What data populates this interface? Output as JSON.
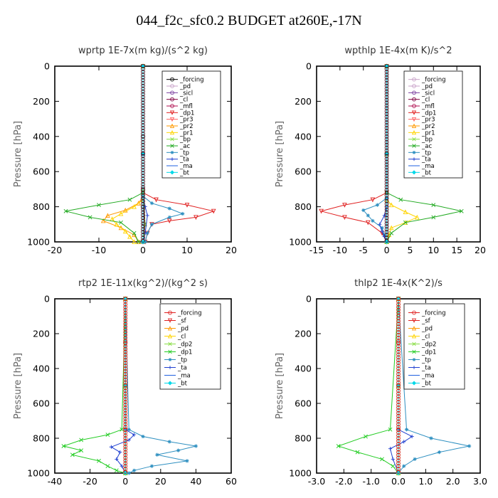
{
  "title": "044_f2c_sfc0.2  BUDGET at260E,-17N",
  "chart_data": [
    {
      "type": "line",
      "title": "wprtp  1E-7x(m kg)/(s^2 kg)",
      "ylabel": "Pressure [hPa]",
      "xlim": [
        -20,
        20
      ],
      "ylim": [
        1000,
        0
      ],
      "x_ticks": [
        -20,
        -10,
        0,
        10,
        20
      ],
      "x_tick_labels": [
        "-20",
        "-10",
        "0",
        "10",
        "20"
      ],
      "y_ticks": [
        0,
        200,
        400,
        600,
        800,
        1000
      ],
      "y_tick_labels": [
        "0",
        "200",
        "400",
        "600",
        "800",
        "1000"
      ],
      "legend_position": "top-right",
      "series": [
        {
          "name": "_forcing",
          "color": "#000000",
          "marker": "o",
          "x": [
            0,
            0,
            0,
            0
          ],
          "y": [
            0,
            400,
            800,
            1000
          ]
        },
        {
          "name": "_pd",
          "color": "#c8a2c8",
          "marker": "o",
          "x": [
            0,
            0,
            0
          ],
          "y": [
            0,
            500,
            1000
          ]
        },
        {
          "name": "_sicl",
          "color": "#7b3fa0",
          "marker": "o",
          "x": [
            0,
            0,
            0
          ],
          "y": [
            0,
            500,
            1000
          ]
        },
        {
          "name": "_cl",
          "color": "#800040",
          "marker": "o",
          "x": [
            0,
            0,
            0.3,
            0
          ],
          "y": [
            0,
            700,
            900,
            1000
          ]
        },
        {
          "name": "_mfl",
          "color": "#b01050",
          "marker": "o",
          "x": [
            0,
            0,
            0
          ],
          "y": [
            0,
            500,
            1000
          ]
        },
        {
          "name": "_dp1",
          "color": "#e02020",
          "marker": "v",
          "x": [
            0,
            0,
            3,
            10,
            16,
            12,
            6,
            2,
            1,
            0.5
          ],
          "y": [
            0,
            720,
            760,
            790,
            825,
            860,
            880,
            900,
            950,
            1000
          ]
        },
        {
          "name": "_pr3",
          "color": "#ff6060",
          "marker": "v",
          "x": [
            0,
            0,
            0
          ],
          "y": [
            0,
            500,
            1000
          ]
        },
        {
          "name": "_pr2",
          "color": "#ff9900",
          "marker": "^",
          "x": [
            0,
            0,
            -1,
            -4,
            -8,
            -9,
            -5,
            -2,
            -1
          ],
          "y": [
            0,
            740,
            780,
            820,
            850,
            880,
            920,
            960,
            1000
          ]
        },
        {
          "name": "_pr1",
          "color": "#ffd400",
          "marker": "^",
          "x": [
            0,
            0,
            -2,
            -5,
            -7,
            -6,
            -4,
            -3,
            -2
          ],
          "y": [
            0,
            760,
            800,
            840,
            870,
            900,
            940,
            970,
            1000
          ]
        },
        {
          "name": "_bp",
          "color": "#88dd44",
          "marker": "x",
          "x": [
            0,
            0,
            0.5,
            0
          ],
          "y": [
            0,
            700,
            900,
            1000
          ]
        },
        {
          "name": "_ac",
          "color": "#22aa22",
          "marker": "x",
          "x": [
            0,
            0,
            -3,
            -10,
            -17.5,
            -12,
            -5,
            -2,
            -1
          ],
          "y": [
            0,
            720,
            760,
            790,
            825,
            860,
            890,
            950,
            1000
          ]
        },
        {
          "name": "_tp",
          "color": "#2d8fc0",
          "marker": "*",
          "x": [
            0,
            0,
            2,
            6,
            9,
            6,
            2,
            1,
            0.5
          ],
          "y": [
            0,
            740,
            780,
            810,
            840,
            860,
            900,
            950,
            1000
          ]
        },
        {
          "name": "_ta",
          "color": "#1f3fd0",
          "marker": "+",
          "x": [
            0,
            0,
            0.5,
            1,
            0.5,
            0
          ],
          "y": [
            0,
            750,
            800,
            850,
            950,
            1000
          ]
        },
        {
          "name": "_ma",
          "color": "#2060e0",
          "marker": "-",
          "x": [
            0,
            0,
            0
          ],
          "y": [
            0,
            500,
            1000
          ]
        },
        {
          "name": "_bt",
          "color": "#00d8e8",
          "marker": "D",
          "x": [
            0,
            0,
            0
          ],
          "y": [
            0,
            500,
            1000
          ]
        }
      ]
    },
    {
      "type": "line",
      "title": "wpthlp  1E-4x(m K)/s^2",
      "ylabel": "Pressure [hPa]",
      "xlim": [
        -15,
        20
      ],
      "ylim": [
        1000,
        0
      ],
      "x_ticks": [
        -15,
        -10,
        -5,
        0,
        5,
        10,
        15,
        20
      ],
      "x_tick_labels": [
        "-15",
        "-10",
        "-5",
        "0",
        "5",
        "10",
        "15",
        "20"
      ],
      "y_ticks": [
        0,
        200,
        400,
        600,
        800,
        1000
      ],
      "y_tick_labels": [
        "0",
        "200",
        "400",
        "600",
        "800",
        "1000"
      ],
      "legend_position": "top-right",
      "series": [
        {
          "name": "_forcing",
          "color": "#c8a2c8",
          "marker": "o",
          "x": [
            0,
            0,
            0
          ],
          "y": [
            0,
            500,
            1000
          ]
        },
        {
          "name": "_pd",
          "color": "#c8a2c8",
          "marker": "o",
          "x": [
            0,
            0,
            0
          ],
          "y": [
            0,
            500,
            1000
          ]
        },
        {
          "name": "_sicl",
          "color": "#7b3fa0",
          "marker": "o",
          "x": [
            0,
            0,
            0
          ],
          "y": [
            0,
            500,
            1000
          ]
        },
        {
          "name": "_cl",
          "color": "#800040",
          "marker": "o",
          "x": [
            0,
            0,
            0
          ],
          "y": [
            0,
            500,
            1000
          ]
        },
        {
          "name": "_mfl",
          "color": "#b01050",
          "marker": "o",
          "x": [
            0,
            0,
            0
          ],
          "y": [
            0,
            500,
            1000
          ]
        },
        {
          "name": "_dp1",
          "color": "#e02020",
          "marker": "v",
          "x": [
            0,
            0,
            -3,
            -9,
            -14,
            -9,
            -4,
            -1,
            0
          ],
          "y": [
            0,
            720,
            760,
            790,
            825,
            860,
            890,
            950,
            1000
          ]
        },
        {
          "name": "_pr3",
          "color": "#ff6060",
          "marker": "v",
          "x": [
            0,
            0,
            0
          ],
          "y": [
            0,
            500,
            1000
          ]
        },
        {
          "name": "_pr2",
          "color": "#ff9900",
          "marker": "^",
          "x": [
            0,
            0,
            0
          ],
          "y": [
            0,
            500,
            1000
          ]
        },
        {
          "name": "_pr1",
          "color": "#ffd400",
          "marker": "^",
          "x": [
            0,
            0,
            1,
            4,
            6.5,
            4,
            1,
            0.5,
            0
          ],
          "y": [
            0,
            760,
            790,
            830,
            860,
            890,
            920,
            960,
            1000
          ]
        },
        {
          "name": "_bp",
          "color": "#88dd44",
          "marker": "x",
          "x": [
            0,
            0,
            0
          ],
          "y": [
            0,
            500,
            1000
          ]
        },
        {
          "name": "_ac",
          "color": "#22aa22",
          "marker": "x",
          "x": [
            0,
            0,
            3,
            10,
            16,
            10,
            4,
            1,
            0
          ],
          "y": [
            0,
            720,
            760,
            790,
            825,
            860,
            890,
            950,
            1000
          ]
        },
        {
          "name": "_tp",
          "color": "#2d8fc0",
          "marker": "*",
          "x": [
            0,
            0,
            -2,
            -5,
            -4,
            -3,
            -1,
            -0.5,
            0
          ],
          "y": [
            0,
            750,
            790,
            820,
            850,
            880,
            920,
            960,
            1000
          ]
        },
        {
          "name": "_ta",
          "color": "#1f3fd0",
          "marker": "+",
          "x": [
            0,
            0,
            -0.5,
            -1.5,
            -1,
            -0.5,
            0
          ],
          "y": [
            0,
            800,
            850,
            900,
            940,
            970,
            1000
          ]
        },
        {
          "name": "_ma",
          "color": "#2060e0",
          "marker": "-",
          "x": [
            0,
            0,
            0
          ],
          "y": [
            0,
            500,
            1000
          ]
        },
        {
          "name": "_bt",
          "color": "#00d8e8",
          "marker": "D",
          "x": [
            0,
            0,
            0
          ],
          "y": [
            0,
            500,
            1000
          ]
        }
      ]
    },
    {
      "type": "line",
      "title": "rtp2  1E-11x(kg^2)/(kg^2 s)",
      "ylabel": "Pressure [hPa]",
      "xlim": [
        -40,
        60
      ],
      "ylim": [
        1000,
        0
      ],
      "x_ticks": [
        -40,
        -20,
        0,
        20,
        40,
        60
      ],
      "x_tick_labels": [
        "-40",
        "-20",
        "0",
        "20",
        "40",
        "60"
      ],
      "y_ticks": [
        0,
        200,
        400,
        600,
        800,
        1000
      ],
      "y_tick_labels": [
        "0",
        "200",
        "400",
        "600",
        "800",
        "1000"
      ],
      "legend_position": "top-right",
      "series": [
        {
          "name": "_forcing",
          "color": "#e02020",
          "marker": "o",
          "x": [
            0,
            0,
            0,
            0,
            0
          ],
          "y": [
            0,
            250,
            500,
            750,
            1000
          ]
        },
        {
          "name": "_sf",
          "color": "#e02020",
          "marker": "v",
          "x": [
            0,
            0,
            0
          ],
          "y": [
            0,
            500,
            1000
          ]
        },
        {
          "name": "_pd",
          "color": "#ff9900",
          "marker": "^",
          "x": [
            0,
            0,
            0
          ],
          "y": [
            0,
            500,
            1000
          ]
        },
        {
          "name": "_cl",
          "color": "#ffd400",
          "marker": "^",
          "x": [
            0,
            0,
            0
          ],
          "y": [
            0,
            500,
            1000
          ]
        },
        {
          "name": "_dp2",
          "color": "#88dd44",
          "marker": "x",
          "x": [
            0,
            0,
            0
          ],
          "y": [
            0,
            500,
            1000
          ]
        },
        {
          "name": "_dp1",
          "color": "#22cc22",
          "marker": "x",
          "x": [
            0,
            -2,
            -10,
            -25,
            -35,
            -25,
            -30,
            -15,
            -10,
            -5,
            0
          ],
          "y": [
            0,
            750,
            780,
            810,
            845,
            870,
            895,
            930,
            960,
            985,
            1000
          ]
        },
        {
          "name": "_tp",
          "color": "#2d8fc0",
          "marker": "*",
          "x": [
            0,
            2,
            10,
            25,
            40,
            30,
            18,
            35,
            15,
            5,
            2
          ],
          "y": [
            0,
            750,
            790,
            820,
            845,
            870,
            895,
            930,
            960,
            985,
            1000
          ]
        },
        {
          "name": "_ta",
          "color": "#1f3fd0",
          "marker": "+",
          "x": [
            0,
            0,
            5,
            2,
            -8,
            -3,
            -5,
            -2,
            0
          ],
          "y": [
            0,
            750,
            780,
            810,
            850,
            880,
            920,
            960,
            1000
          ]
        },
        {
          "name": "_ma",
          "color": "#2060e0",
          "marker": "-",
          "x": [
            0,
            0,
            0
          ],
          "y": [
            0,
            500,
            1000
          ]
        },
        {
          "name": "_bt",
          "color": "#00d8e8",
          "marker": "D",
          "x": [
            0,
            0,
            0
          ],
          "y": [
            0,
            500,
            1000
          ]
        }
      ]
    },
    {
      "type": "line",
      "title": "thlp2  1E-4x(K^2)/s",
      "ylabel": "Pressure [hPa]",
      "xlim": [
        -3,
        3
      ],
      "ylim": [
        1000,
        0
      ],
      "x_ticks": [
        -3,
        -2,
        -1,
        0,
        1,
        2,
        3
      ],
      "x_tick_labels": [
        "-3.0",
        "-2.0",
        "-1.0",
        "0.0",
        "1.0",
        "2.0",
        "3.0"
      ],
      "y_ticks": [
        0,
        200,
        400,
        600,
        800,
        1000
      ],
      "y_tick_labels": [
        "0",
        "200",
        "400",
        "600",
        "800",
        "1000"
      ],
      "legend_position": "top-right",
      "series": [
        {
          "name": "_forcing",
          "color": "#e02020",
          "marker": "o",
          "x": [
            0,
            0,
            0,
            0,
            0
          ],
          "y": [
            0,
            250,
            500,
            750,
            1000
          ]
        },
        {
          "name": "_sf",
          "color": "#e02020",
          "marker": "v",
          "x": [
            0,
            0,
            0
          ],
          "y": [
            0,
            500,
            1000
          ]
        },
        {
          "name": "_pd",
          "color": "#ff9900",
          "marker": "^",
          "x": [
            0,
            0,
            0
          ],
          "y": [
            0,
            500,
            1000
          ]
        },
        {
          "name": "_cl",
          "color": "#ffd400",
          "marker": "^",
          "x": [
            0,
            0,
            0
          ],
          "y": [
            0,
            500,
            1000
          ]
        },
        {
          "name": "_dp2",
          "color": "#88dd44",
          "marker": "x",
          "x": [
            0,
            0,
            0
          ],
          "y": [
            0,
            500,
            1000
          ]
        },
        {
          "name": "_dp1",
          "color": "#22cc22",
          "marker": "x",
          "x": [
            0,
            -0.3,
            -1.2,
            -2.2,
            -1.5,
            -0.6,
            -0.2,
            0
          ],
          "y": [
            0,
            750,
            790,
            845,
            880,
            920,
            960,
            1000
          ]
        },
        {
          "name": "_tp",
          "color": "#2d8fc0",
          "marker": "*",
          "x": [
            0,
            0.3,
            1.2,
            2.6,
            1.5,
            0.6,
            0.2,
            0
          ],
          "y": [
            0,
            750,
            800,
            845,
            880,
            920,
            960,
            1000
          ]
        },
        {
          "name": "_ta",
          "color": "#1f3fd0",
          "marker": "+",
          "x": [
            0,
            0,
            0.5,
            0.2,
            -0.3,
            -0.2,
            0
          ],
          "y": [
            0,
            750,
            790,
            820,
            860,
            920,
            1000
          ]
        },
        {
          "name": "_ma",
          "color": "#2060e0",
          "marker": "-",
          "x": [
            0,
            0,
            0
          ],
          "y": [
            0,
            500,
            1000
          ]
        },
        {
          "name": "_bt",
          "color": "#00d8e8",
          "marker": "D",
          "x": [
            0,
            0,
            0
          ],
          "y": [
            0,
            500,
            1000
          ]
        }
      ]
    }
  ]
}
